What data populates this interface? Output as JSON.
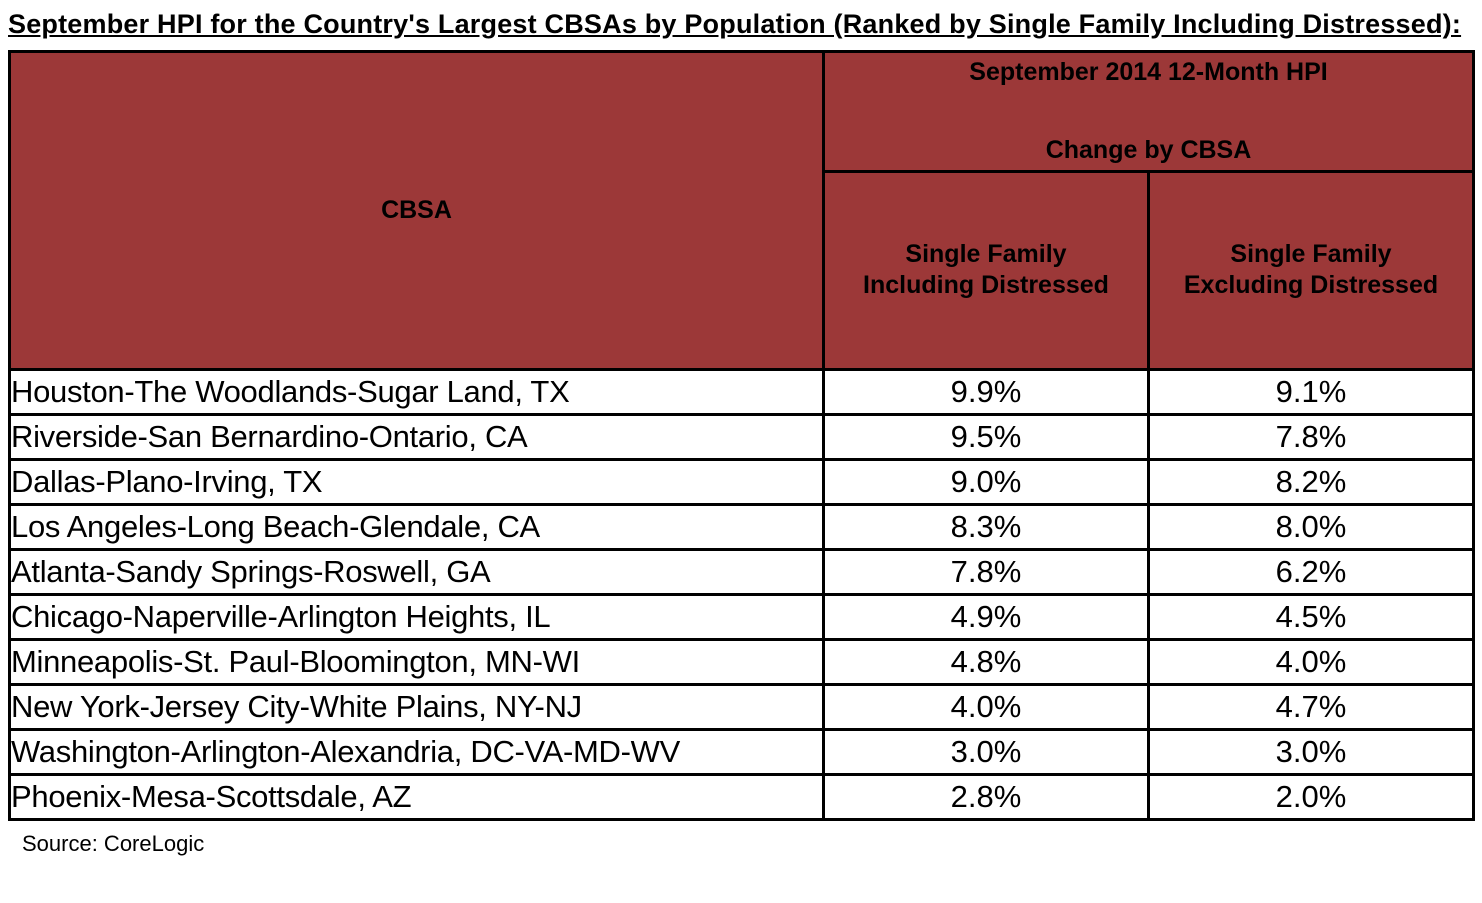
{
  "title": "September HPI for the Country's Largest CBSAs by Population (Ranked by Single Family Including Distressed):",
  "table": {
    "cbsa_header": "CBSA",
    "group_header": "September 2014 12-Month HPI\n\nChange by CBSA",
    "col_including": "Single Family\nIncluding Distressed",
    "col_excluding": "Single Family\nExcluding Distressed",
    "rows": [
      {
        "cbsa": "Houston-The Woodlands-Sugar Land, TX",
        "including": "9.9%",
        "excluding": "9.1%"
      },
      {
        "cbsa": "Riverside-San Bernardino-Ontario, CA",
        "including": "9.5%",
        "excluding": "7.8%"
      },
      {
        "cbsa": "Dallas-Plano-Irving, TX",
        "including": "9.0%",
        "excluding": "8.2%"
      },
      {
        "cbsa": "Los Angeles-Long Beach-Glendale, CA",
        "including": "8.3%",
        "excluding": "8.0%"
      },
      {
        "cbsa": "Atlanta-Sandy Springs-Roswell, GA",
        "including": "7.8%",
        "excluding": "6.2%"
      },
      {
        "cbsa": "Chicago-Naperville-Arlington Heights, IL",
        "including": "4.9%",
        "excluding": "4.5%"
      },
      {
        "cbsa": "Minneapolis-St. Paul-Bloomington, MN-WI",
        "including": "4.8%",
        "excluding": "4.0%"
      },
      {
        "cbsa": "New York-Jersey City-White Plains, NY-NJ",
        "including": "4.0%",
        "excluding": "4.7%"
      },
      {
        "cbsa": "Washington-Arlington-Alexandria, DC-VA-MD-WV",
        "including": "3.0%",
        "excluding": "3.0%"
      },
      {
        "cbsa": "Phoenix-Mesa-Scottsdale, AZ",
        "including": "2.8%",
        "excluding": "2.0%"
      }
    ]
  },
  "source": "Source: CoreLogic",
  "colors": {
    "header_background": "#9C3838",
    "border": "#000000",
    "text": "#000000",
    "page_background": "#FFFFFF"
  }
}
